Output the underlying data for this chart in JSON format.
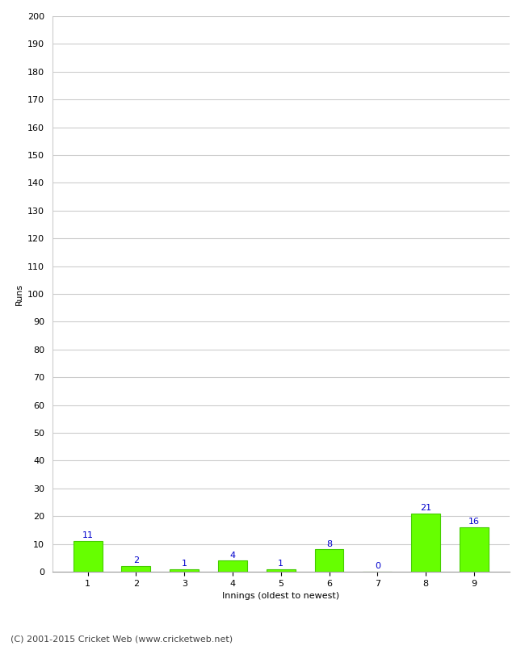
{
  "innings": [
    1,
    2,
    3,
    4,
    5,
    6,
    7,
    8,
    9
  ],
  "runs": [
    11,
    2,
    1,
    4,
    1,
    8,
    0,
    21,
    16
  ],
  "bar_color": "#66ff00",
  "bar_edge_color": "#44cc00",
  "label_color": "#0000cc",
  "xlabel": "Innings (oldest to newest)",
  "ylabel": "Runs",
  "ylim": [
    0,
    200
  ],
  "yticks": [
    0,
    10,
    20,
    30,
    40,
    50,
    60,
    70,
    80,
    90,
    100,
    110,
    120,
    130,
    140,
    150,
    160,
    170,
    180,
    190,
    200
  ],
  "grid_color": "#cccccc",
  "background_color": "#ffffff",
  "footer_text": "(C) 2001-2015 Cricket Web (www.cricketweb.net)",
  "label_fontsize": 8,
  "axis_fontsize": 8,
  "footer_fontsize": 8
}
